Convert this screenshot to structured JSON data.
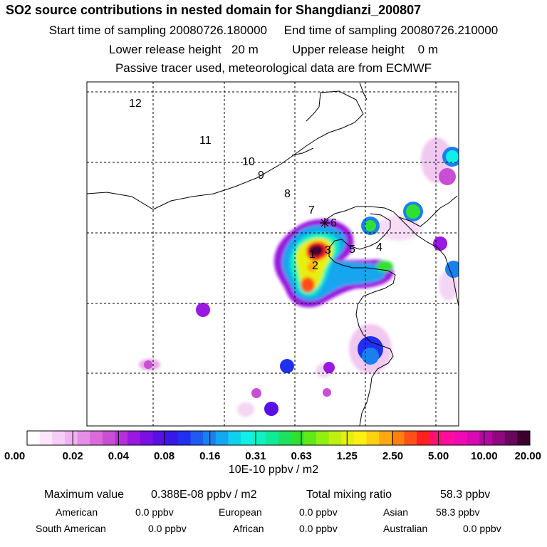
{
  "header": {
    "title": "SO2 source contributions in nested domain for Shangdianzi_200807",
    "line1": "Start time of sampling 20080726.180000     End time of sampling 20080726.210000",
    "line2": "Lower release height   20 m          Upper release height    0 m",
    "line3": "Passive tracer used, meteorological data are from ECMWF"
  },
  "map": {
    "station_labels": [
      "12",
      "11",
      "10",
      "9",
      "8",
      "7",
      "6",
      "1",
      "3",
      "5",
      "4",
      "2"
    ],
    "colors": {
      "frame": "#000000",
      "grid": "#000000",
      "coast": "#000000"
    }
  },
  "colorbar": {
    "tick_labels": [
      "0.00",
      "0.02",
      "0.04",
      "0.08",
      "0.16",
      "0.31",
      "0.63",
      "1.25",
      "2.50",
      "5.00",
      "10.00",
      "20.00"
    ],
    "unit": "10E-10 ppbv / m2",
    "colors": [
      "#ffffff",
      "#fbe6fb",
      "#f6cdf6",
      "#efb3ef",
      "#e68ee6",
      "#db6bdb",
      "#c84fd3",
      "#b62fd9",
      "#9a18e0",
      "#7a10e4",
      "#5810e6",
      "#3818e6",
      "#2030f0",
      "#1e5af0",
      "#1a80f0",
      "#14a6f0",
      "#10d0f0",
      "#10f0e6",
      "#10f0c0",
      "#10ea96",
      "#1ce060",
      "#30e030",
      "#60e818",
      "#90f010",
      "#c0f010",
      "#e6f010",
      "#fff010",
      "#ffd010",
      "#ffa810",
      "#ff8010",
      "#ff5018",
      "#ff2020",
      "#ff1070",
      "#ff0ea0",
      "#f00ab4",
      "#d808b4",
      "#b4089c",
      "#900880",
      "#6a065e",
      "#3c0030"
    ]
  },
  "stats": {
    "max_label": "Maximum value",
    "max_value": "0.388E-08 ppbv / m2",
    "total_label": "Total mixing ratio",
    "total_value": "58.3 ppbv",
    "regions": [
      {
        "label": "American",
        "value": "0.0 ppbv"
      },
      {
        "label": "European",
        "value": "0.0 ppbv"
      },
      {
        "label": "Asian",
        "value": "58.3 ppbv"
      },
      {
        "label": "South American",
        "value": "0.0 ppbv"
      },
      {
        "label": "African",
        "value": "0.0 ppbv"
      },
      {
        "label": "Australian",
        "value": "0.0 ppbv"
      }
    ]
  }
}
